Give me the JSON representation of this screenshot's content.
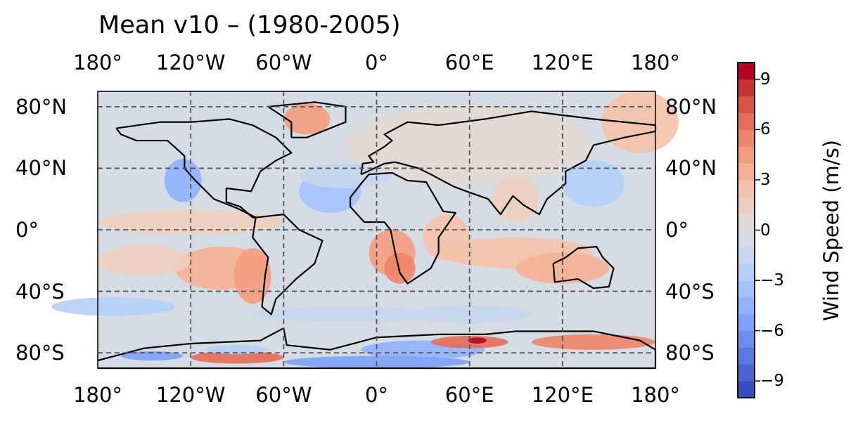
{
  "chart_data": {
    "type": "heatmap",
    "title": "Mean v10 – (1980-2005)",
    "projection": "PlateCarree",
    "x_ticks": [
      "180°",
      "120°W",
      "60°W",
      "0°",
      "60°E",
      "120°E",
      "180°"
    ],
    "x_tick_values": [
      -180,
      -120,
      -60,
      0,
      60,
      120,
      180
    ],
    "y_ticks": [
      "80°N",
      "40°N",
      "0°",
      "40°S",
      "80°S"
    ],
    "y_tick_values": [
      80,
      40,
      0,
      -40,
      -80
    ],
    "xlim": [
      -180,
      180
    ],
    "ylim": [
      -90,
      90
    ],
    "grid": true,
    "colorbar": {
      "label": "Wind Speed (m/s)",
      "ticks": [
        "9",
        "6",
        "3",
        "0",
        "−3",
        "−6",
        "−9"
      ],
      "tick_values": [
        9,
        6,
        3,
        0,
        -3,
        -6,
        -9
      ],
      "range": [
        -10,
        10
      ],
      "levels": 20,
      "cmap": "coolwarm",
      "placement": "right"
    }
  }
}
